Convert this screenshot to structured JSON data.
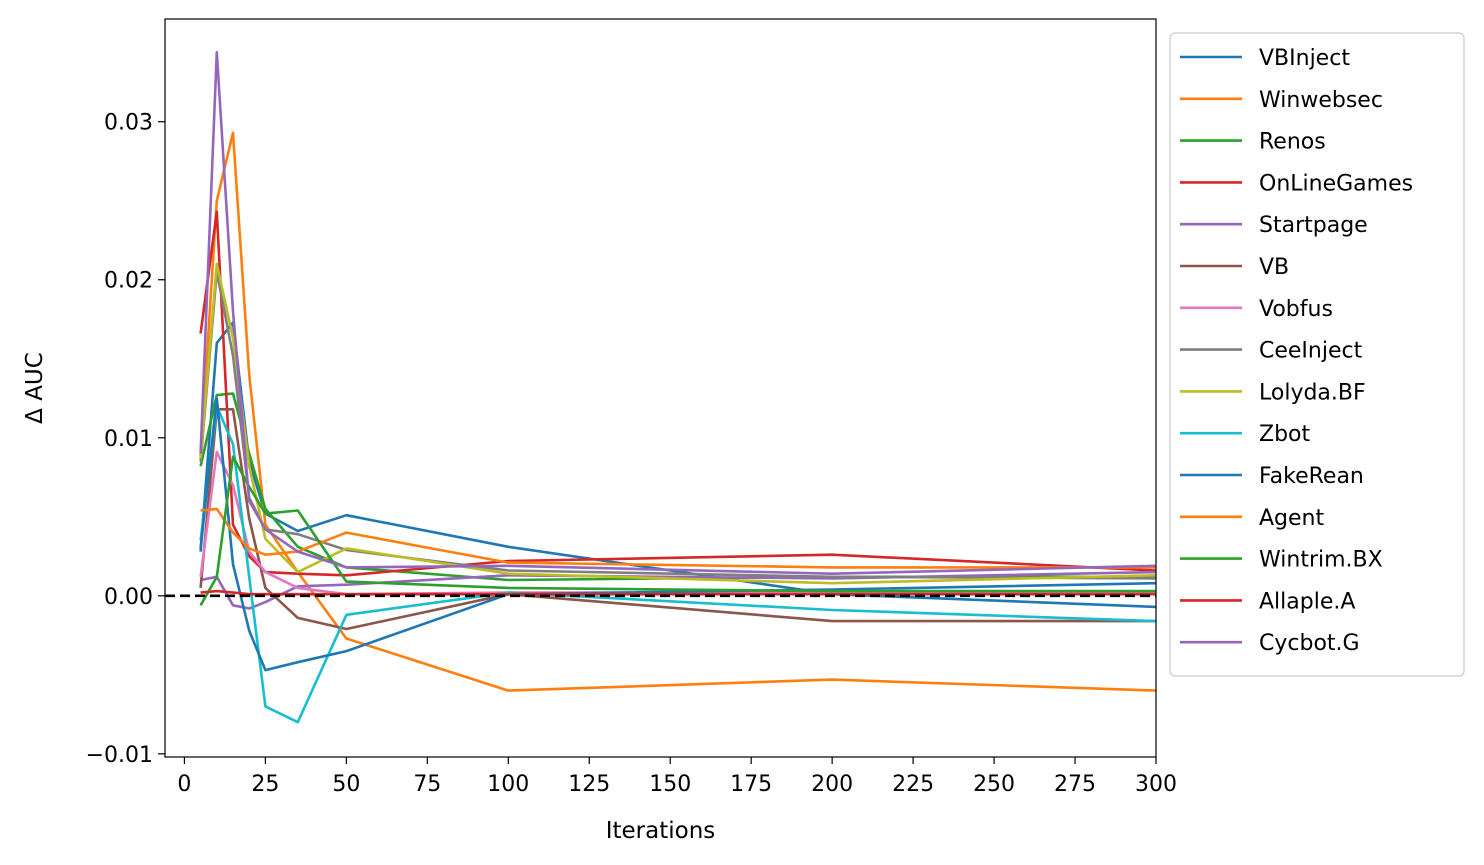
{
  "chart_data": {
    "type": "line",
    "title": "",
    "xlabel": "Iterations",
    "ylabel": "Δ AUC",
    "xlim": [
      -6,
      300
    ],
    "ylim": [
      -0.0102,
      0.0365
    ],
    "xticks": [
      0,
      25,
      50,
      75,
      100,
      125,
      150,
      175,
      200,
      225,
      250,
      275,
      300
    ],
    "xtick_labels": [
      "0",
      "25",
      "50",
      "75",
      "100",
      "125",
      "150",
      "175",
      "200",
      "225",
      "250",
      "275",
      "300"
    ],
    "yticks": [
      -0.01,
      0.0,
      0.01,
      0.02,
      0.03
    ],
    "ytick_labels": [
      "−0.01",
      "0.00",
      "0.01",
      "0.02",
      "0.03"
    ],
    "grid": false,
    "legend_position": "outside-right",
    "reference_line": {
      "y": 0,
      "style": "dashed",
      "color": "#000000"
    },
    "x": [
      5,
      10,
      15,
      20,
      25,
      35,
      50,
      100,
      200,
      300
    ],
    "series": [
      {
        "name": "VBInject",
        "color": "#1f77b4",
        "values": [
          0.0028,
          0.016,
          0.0173,
          0.0085,
          0.0052,
          0.0041,
          0.0051,
          0.0031,
          0.0001,
          -0.0007
        ]
      },
      {
        "name": "Winwebsec",
        "color": "#ff7f0e",
        "values": [
          0.0088,
          0.025,
          0.0293,
          0.014,
          0.0045,
          0.0015,
          -0.0027,
          -0.006,
          -0.0053,
          -0.006
        ]
      },
      {
        "name": "Renos",
        "color": "#2ca02c",
        "values": [
          0.0082,
          0.0127,
          0.0128,
          0.009,
          0.0055,
          0.0031,
          0.0018,
          0.001,
          0.0012,
          0.0012
        ]
      },
      {
        "name": "OnLineGames",
        "color": "#d62728",
        "values": [
          0.0166,
          0.0243,
          0.0045,
          0.0025,
          0.0015,
          0.0014,
          0.0013,
          0.0022,
          0.0026,
          0.0016
        ]
      },
      {
        "name": "Startpage",
        "color": "#9467bd",
        "values": [
          0.001,
          0.0012,
          -0.0006,
          -0.0008,
          -0.0004,
          0.0006,
          0.0007,
          0.0013,
          0.0011,
          0.0015
        ]
      },
      {
        "name": "VB",
        "color": "#8c564b",
        "values": [
          0.0005,
          0.0118,
          0.0118,
          0.0049,
          0.0005,
          -0.0014,
          -0.0021,
          0.0001,
          -0.0016,
          -0.0016
        ]
      },
      {
        "name": "Vobfus",
        "color": "#e377c2",
        "values": [
          0.0012,
          0.0091,
          0.007,
          0.0028,
          0.0015,
          0.0005,
          0.0001,
          0.0002,
          0.0002,
          0.0002
        ]
      },
      {
        "name": "CeeInject",
        "color": "#7f7f7f",
        "values": [
          0.0085,
          0.0205,
          0.0152,
          0.0062,
          0.0042,
          0.0039,
          0.0029,
          0.0016,
          0.0012,
          0.0011
        ]
      },
      {
        "name": "Lolyda.BF",
        "color": "#bcbd22",
        "values": [
          0.0087,
          0.021,
          0.0163,
          0.0082,
          0.0036,
          0.0015,
          0.003,
          0.0014,
          0.0008,
          0.0013
        ]
      },
      {
        "name": "Zbot",
        "color": "#17becf",
        "values": [
          0.0035,
          0.012,
          0.0096,
          0.0012,
          -0.007,
          -0.008,
          -0.0012,
          0.0002,
          -0.0009,
          -0.0016
        ]
      },
      {
        "name": "FakeRean",
        "color": "#1f77b4",
        "values": [
          0.003,
          0.0125,
          0.002,
          -0.0022,
          -0.0047,
          -0.0042,
          -0.0035,
          0.0001,
          0.0004,
          0.0008
        ]
      },
      {
        "name": "Agent",
        "color": "#ff7f0e",
        "values": [
          0.0054,
          0.0055,
          0.004,
          0.003,
          0.0026,
          0.0028,
          0.004,
          0.0021,
          0.0018,
          0.0018
        ]
      },
      {
        "name": "Wintrim.BX",
        "color": "#2ca02c",
        "values": [
          -0.0006,
          0.0012,
          0.0088,
          0.0069,
          0.0052,
          0.0054,
          0.0009,
          0.0005,
          0.0003,
          0.0003
        ]
      },
      {
        "name": "Allaple.A",
        "color": "#d62728",
        "values": [
          0.0002,
          0.0003,
          0.0002,
          0.0001,
          0.0001,
          0.0001,
          0.0001,
          0.0001,
          0.0001,
          0.0001
        ]
      },
      {
        "name": "Cycbot.G",
        "color": "#9467bd",
        "values": [
          0.009,
          0.0344,
          0.018,
          0.006,
          0.0042,
          0.0028,
          0.0018,
          0.0019,
          0.0014,
          0.0019
        ]
      }
    ]
  }
}
